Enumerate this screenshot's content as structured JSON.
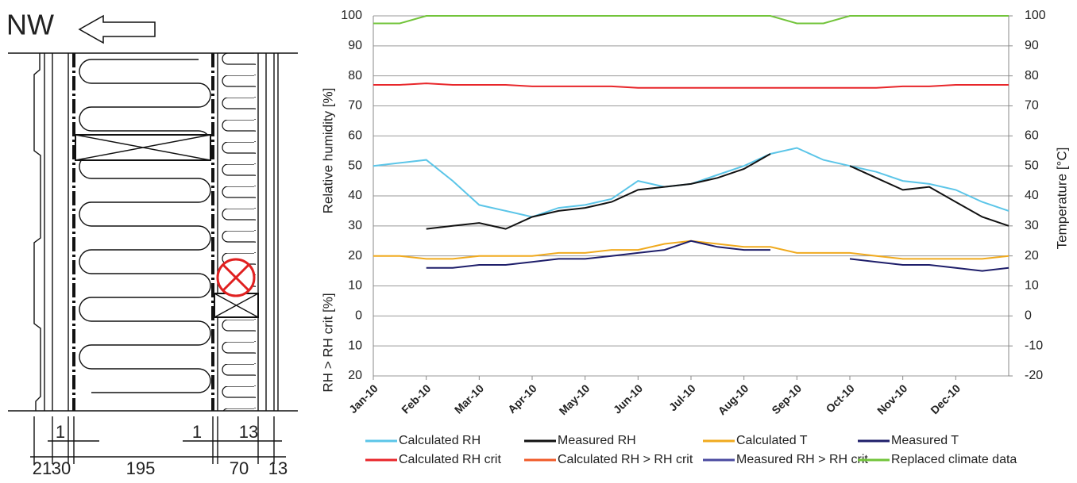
{
  "drawing": {
    "direction": "NW",
    "dimensions_top": [
      "1",
      "1",
      "13"
    ],
    "dimensions_bottom": [
      "21",
      "30",
      "195",
      "70",
      "13"
    ]
  },
  "chart_data": {
    "type": "line",
    "y_label": "Relative humidity [%]",
    "y_label_lower": "RH > RH crit [%]",
    "y2_label": "Temperature [°C]",
    "categories": [
      "Jan-10",
      null,
      "Feb-10",
      null,
      "Mar-10",
      null,
      "Apr-10",
      null,
      "May-10",
      null,
      "Jun-10",
      null,
      "Jul-10",
      null,
      "Aug-10",
      null,
      "Sep-10",
      null,
      "Oct-10",
      null,
      "Nov-10",
      null,
      "Dec-10",
      null,
      null
    ],
    "ylim": [
      -20,
      100
    ],
    "yticks": [
      100,
      90,
      80,
      70,
      60,
      50,
      40,
      30,
      20,
      10,
      0,
      {
        "value": -10,
        "label": "10"
      },
      {
        "value": -20,
        "label": "20"
      }
    ],
    "y2lim": [
      -20,
      100
    ],
    "y2ticks": [
      100,
      90,
      80,
      70,
      60,
      50,
      40,
      30,
      20,
      10,
      0,
      -10,
      -20
    ],
    "grid": true,
    "series": [
      {
        "name": "Calculated RH",
        "color": "#5bc5e8",
        "values": [
          50,
          51,
          52,
          45,
          37,
          35,
          33,
          36,
          37,
          39,
          45,
          43,
          44,
          47,
          50,
          54,
          56,
          52,
          50,
          48,
          45,
          44,
          42,
          38,
          35
        ]
      },
      {
        "name": "Measured RH",
        "color": "#111111",
        "values": [
          null,
          null,
          29,
          30,
          31,
          29,
          33,
          35,
          36,
          38,
          42,
          43,
          44,
          46,
          49,
          54,
          null,
          null,
          50,
          46,
          42,
          43,
          38,
          33,
          30
        ]
      },
      {
        "name": "Calculated T",
        "color": "#f0aa1e",
        "axis": "y2",
        "values": [
          20,
          20,
          19,
          19,
          20,
          20,
          20,
          21,
          21,
          22,
          22,
          24,
          25,
          24,
          23,
          23,
          21,
          21,
          21,
          20,
          19,
          19,
          19,
          19,
          20
        ]
      },
      {
        "name": "Measured T",
        "color": "#1e1e6a",
        "axis": "y2",
        "values": [
          null,
          null,
          16,
          16,
          17,
          17,
          18,
          19,
          19,
          20,
          21,
          22,
          25,
          23,
          22,
          22,
          null,
          null,
          19,
          18,
          17,
          17,
          16,
          15,
          16
        ]
      },
      {
        "name": "Calculated RH crit",
        "color": "#e8262a",
        "values": [
          77,
          77,
          77.5,
          77,
          77,
          77,
          76.5,
          76.5,
          76.5,
          76.5,
          76,
          76,
          76,
          76,
          76,
          76,
          76,
          76,
          76,
          76,
          76.5,
          76.5,
          77,
          77,
          77
        ]
      },
      {
        "name": "Calculated RH > RH crit",
        "color": "#f05a28",
        "values": [
          null,
          null,
          null,
          null,
          null,
          null,
          null,
          null,
          null,
          null,
          null,
          null,
          null,
          null,
          null,
          null,
          null,
          null,
          null,
          null,
          null,
          null,
          null,
          null,
          null
        ]
      },
      {
        "name": "Measured RH > RH crit",
        "color": "#4a4aa0",
        "values": [
          null,
          null,
          null,
          null,
          null,
          null,
          null,
          null,
          null,
          null,
          null,
          null,
          null,
          null,
          null,
          null,
          null,
          null,
          null,
          null,
          null,
          null,
          null,
          null,
          null
        ]
      },
      {
        "name": "Replaced climate data",
        "color": "#72c43a",
        "values": [
          97.5,
          97.5,
          100,
          100,
          100,
          100,
          100,
          100,
          100,
          100,
          100,
          100,
          100,
          100,
          100,
          100,
          97.5,
          97.5,
          100,
          100,
          100,
          100,
          100,
          100,
          100
        ]
      }
    ]
  }
}
